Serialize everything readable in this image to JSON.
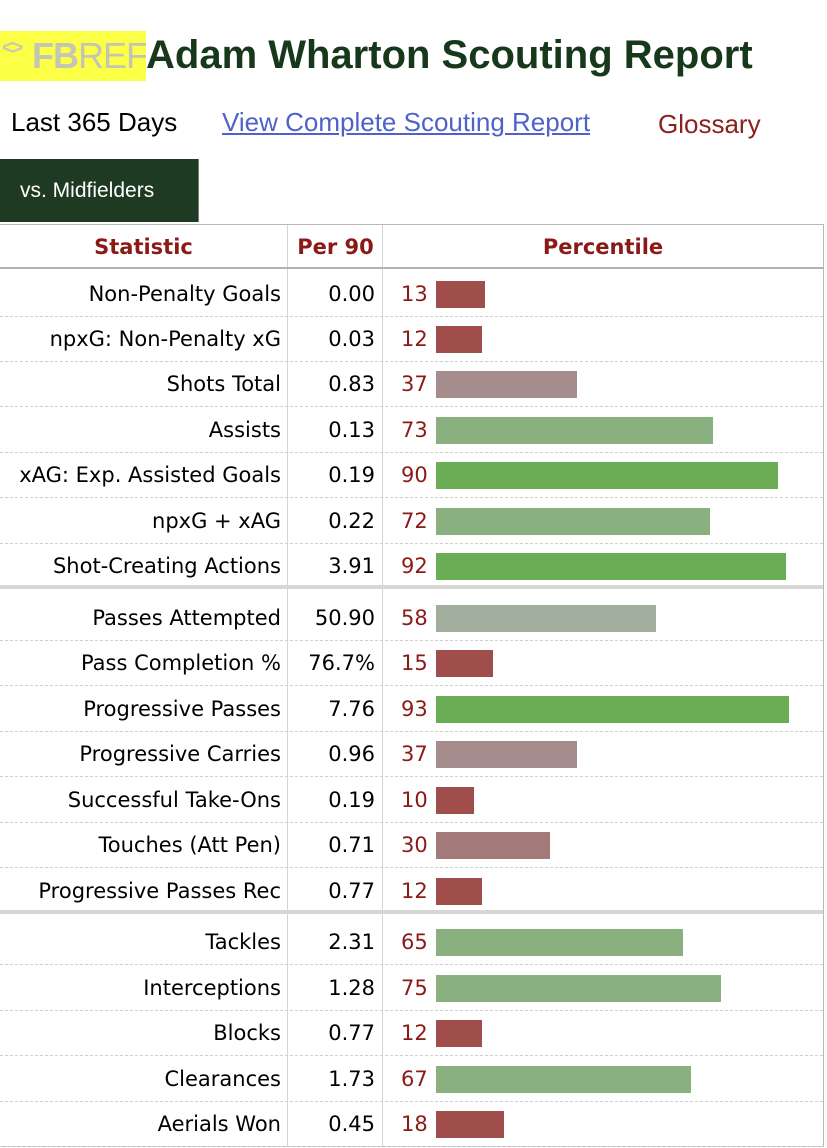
{
  "logo": {
    "mark": "<>",
    "fb": "FB",
    "ref": "REF"
  },
  "title": "Adam Wharton Scouting Report",
  "period": "Last 365 Days",
  "full_report_link": "View Complete Scouting Report",
  "glossary": "Glossary",
  "tab_label": "vs. Midfielders",
  "columns": {
    "statistic": "Statistic",
    "per90": "Per 90",
    "percentile": "Percentile"
  },
  "bar_colors": {
    "low": "#a04e4c",
    "low_mid": "#a37a79",
    "mid_low": "#a68d8d",
    "mid": "#a1ae9d",
    "mid_high": "#8bb07f",
    "high": "#6aad54"
  },
  "rows": [
    {
      "stat": "Non-Penalty Goals",
      "per90": "0.00",
      "pct": "13",
      "pct_value": 13
    },
    {
      "stat": "npxG: Non-Penalty xG",
      "per90": "0.03",
      "pct": "12",
      "pct_value": 12
    },
    {
      "stat": "Shots Total",
      "per90": "0.83",
      "pct": "37",
      "pct_value": 37
    },
    {
      "stat": "Assists",
      "per90": "0.13",
      "pct": "73",
      "pct_value": 73
    },
    {
      "stat": "xAG: Exp. Assisted Goals",
      "per90": "0.19",
      "pct": "90",
      "pct_value": 90
    },
    {
      "stat": "npxG + xAG",
      "per90": "0.22",
      "pct": "72",
      "pct_value": 72
    },
    {
      "stat": "Shot-Creating Actions",
      "per90": "3.91",
      "pct": "92",
      "pct_value": 92
    },
    {
      "stat": "Passes Attempted",
      "per90": "50.90",
      "pct": "58",
      "pct_value": 58
    },
    {
      "stat": "Pass Completion %",
      "per90": "76.7%",
      "pct": "15",
      "pct_value": 15
    },
    {
      "stat": "Progressive Passes",
      "per90": "7.76",
      "pct": "93",
      "pct_value": 93
    },
    {
      "stat": "Progressive Carries",
      "per90": "0.96",
      "pct": "37",
      "pct_value": 37
    },
    {
      "stat": "Successful Take-Ons",
      "per90": "0.19",
      "pct": "10",
      "pct_value": 10
    },
    {
      "stat": "Touches (Att Pen)",
      "per90": "0.71",
      "pct": "30",
      "pct_value": 30
    },
    {
      "stat": "Progressive Passes Rec",
      "per90": "0.77",
      "pct": "12",
      "pct_value": 12
    },
    {
      "stat": "Tackles",
      "per90": "2.31",
      "pct": "65",
      "pct_value": 65
    },
    {
      "stat": "Interceptions",
      "per90": "1.28",
      "pct": "75",
      "pct_value": 75
    },
    {
      "stat": "Blocks",
      "per90": "0.77",
      "pct": "12",
      "pct_value": 12
    },
    {
      "stat": "Clearances",
      "per90": "1.73",
      "pct": "67",
      "pct_value": 67
    },
    {
      "stat": "Aerials Won",
      "per90": "0.45",
      "pct": "18",
      "pct_value": 18
    }
  ]
}
